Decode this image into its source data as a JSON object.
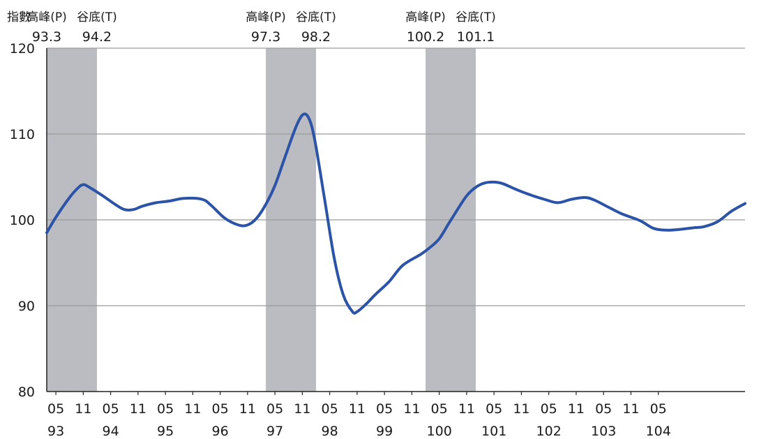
{
  "chart_data": {
    "type": "line",
    "y_axis_title": "指數",
    "ylim": [
      80,
      120
    ],
    "yticks": [
      80,
      90,
      100,
      110,
      120
    ],
    "grid": "horizontal",
    "line_color": "#2b53a7",
    "shade_color": "#bbbcc1",
    "x_month_labels": [
      "05",
      "11",
      "05",
      "11",
      "05",
      "11",
      "05",
      "11",
      "05",
      "11",
      "05",
      "11",
      "05",
      "11",
      "05",
      "11",
      "05",
      "11",
      "05",
      "11",
      "05",
      "11",
      "05"
    ],
    "x_year_labels": [
      {
        "label": "93",
        "tick_index": 0
      },
      {
        "label": "94",
        "tick_index": 2
      },
      {
        "label": "95",
        "tick_index": 4
      },
      {
        "label": "96",
        "tick_index": 6
      },
      {
        "label": "97",
        "tick_index": 8
      },
      {
        "label": "98",
        "tick_index": 10
      },
      {
        "label": "99",
        "tick_index": 12
      },
      {
        "label": "100",
        "tick_index": 14
      },
      {
        "label": "101",
        "tick_index": 16
      },
      {
        "label": "102",
        "tick_index": 18
      },
      {
        "label": "103",
        "tick_index": 20
      },
      {
        "label": "104",
        "tick_index": 22
      }
    ],
    "shaded_periods": [
      {
        "start": "93.3",
        "end": "94.2",
        "peak_label": "高峰(P)",
        "trough_label": "谷底(T)"
      },
      {
        "start": "97.3",
        "end": "98.2",
        "peak_label": "高峰(P)",
        "trough_label": "谷底(T)"
      },
      {
        "start": "100.2",
        "end": "101.1",
        "peak_label": "高峰(P)",
        "trough_label": "谷底(T)"
      }
    ],
    "series": [
      {
        "values": [
          [
            "93.3",
            98.5
          ],
          [
            "93.5",
            100.3
          ],
          [
            "93.8",
            102.6
          ],
          [
            "93.10",
            103.8
          ],
          [
            "93.11",
            104.1
          ],
          [
            "93.12",
            103.9
          ],
          [
            "94.3",
            102.9
          ],
          [
            "94.6",
            101.8
          ],
          [
            "94.8",
            101.2
          ],
          [
            "94.10",
            101.2
          ],
          [
            "94.12",
            101.6
          ],
          [
            "95.3",
            102.0
          ],
          [
            "95.6",
            102.2
          ],
          [
            "95.9",
            102.5
          ],
          [
            "96.1",
            102.4
          ],
          [
            "96.3",
            101.7
          ],
          [
            "96.6",
            100.2
          ],
          [
            "96.9",
            99.4
          ],
          [
            "96.11",
            99.4
          ],
          [
            "97.1",
            100.2
          ],
          [
            "97.3",
            101.8
          ],
          [
            "97.5",
            104.0
          ],
          [
            "97.7",
            107.0
          ],
          [
            "97.9",
            110.0
          ],
          [
            "97.10",
            111.3
          ],
          [
            "97.11",
            112.2
          ],
          [
            "97.12",
            112.2
          ],
          [
            "98.1",
            111.0
          ],
          [
            "98.2",
            108.5
          ],
          [
            "98.4",
            102.0
          ],
          [
            "98.6",
            95.5
          ],
          [
            "98.8",
            91.2
          ],
          [
            "98.10",
            89.3
          ],
          [
            "98.11",
            89.3
          ],
          [
            "99.1",
            90.2
          ],
          [
            "99.3",
            91.3
          ],
          [
            "99.6",
            92.8
          ],
          [
            "99.9",
            94.7
          ],
          [
            "100.1",
            96.0
          ],
          [
            "100.3",
            96.8
          ],
          [
            "100.5",
            97.8
          ],
          [
            "100.7",
            99.5
          ],
          [
            "100.9",
            101.2
          ],
          [
            "100.11",
            102.8
          ],
          [
            "101.1",
            103.8
          ],
          [
            "101.3",
            104.3
          ],
          [
            "101.5",
            104.4
          ],
          [
            "101.7",
            104.2
          ],
          [
            "101.10",
            103.5
          ],
          [
            "102.1",
            102.9
          ],
          [
            "102.4",
            102.4
          ],
          [
            "102.7",
            102.0
          ],
          [
            "102.10",
            102.4
          ],
          [
            "103.1",
            102.6
          ],
          [
            "103.3",
            102.3
          ],
          [
            "103.6",
            101.5
          ],
          [
            "103.9",
            100.7
          ],
          [
            "104.1",
            99.9
          ],
          [
            "104.4",
            99.0
          ],
          [
            "104.7",
            98.8
          ],
          [
            "104.10",
            98.9
          ],
          [
            "105.1",
            99.1
          ],
          [
            "105.3",
            99.2
          ],
          [
            "105.6",
            99.8
          ],
          [
            "105.9",
            101.0
          ],
          [
            "105.12",
            101.9
          ]
        ]
      }
    ]
  }
}
